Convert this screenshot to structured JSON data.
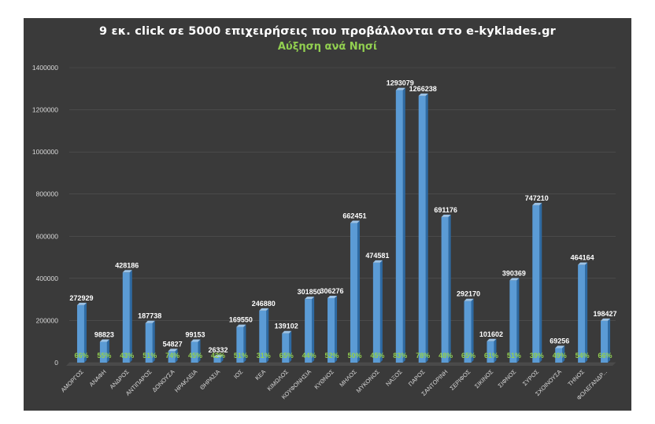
{
  "chart_data": {
    "type": "bar",
    "title": "9 εκ. click σε 5000 επιχειρήσεις που προβάλλονται στο e-kyklades.gr",
    "subtitle": "Αύξηση ανά Νησί",
    "xlabel": "",
    "ylabel": "",
    "ylim": [
      0,
      1400000
    ],
    "yticks": [
      "0",
      "200000",
      "400000",
      "600000",
      "800000",
      "1000000",
      "1200000",
      "1400000"
    ],
    "grid": true,
    "legend": "none",
    "categories": [
      "ΑΜΟΡΓΟΣ",
      "ΑΝΑΦΗ",
      "ΑΝΔΡΟΣ",
      "ΑΝΤΙΠΑΡΟΣ",
      "ΔΟΝΟΥΣΑ",
      "ΗΡΑΚΛΕΙΑ",
      "ΘΗΡΑΣΙΑ",
      "ΙΟΣ",
      "ΚΕΑ",
      "ΚΙΜΩΛΟΣ",
      "ΚΟΥΦΟΝΗΣΙΑ",
      "ΚΥΘΝΟΣ",
      "ΜΗΛΟΣ",
      "ΜΥΚΟΝΟΣ",
      "ΝΑΞΟΣ",
      "ΠΑΡΟΣ",
      "ΣΑΝΤΟΡΙΝΗ",
      "ΣΕΡΙΦΟΣ",
      "ΣΙΚΙΝΟΣ",
      "ΣΙΦΝΟΣ",
      "ΣΥΡΟΣ",
      "ΣΧΟΙΝΟΥΣΑ",
      "ΤΗΝΟΣ",
      "ΦΟΛΕΓΑΝΔΡ..."
    ],
    "values": [
      272929,
      98823,
      428186,
      187738,
      54827,
      99153,
      26332,
      169550,
      246880,
      139102,
      301850,
      306276,
      662451,
      474581,
      1293079,
      1266238,
      691176,
      292170,
      101602,
      390369,
      747210,
      69256,
      464164,
      198427
    ],
    "growth_labels": [
      "66%",
      "55%",
      "43%",
      "51%",
      "74%",
      "45%",
      "42%",
      "51%",
      "31%",
      "65%",
      "44%",
      "52%",
      "50%",
      "45%",
      "83%",
      "78%",
      "48%",
      "65%",
      "61%",
      "51%",
      "39%",
      "49%",
      "54%",
      "66%"
    ],
    "colors": {
      "background": "#3a3a3a",
      "bar": "#5b9bd5",
      "bar_top": "#9dc3e6",
      "bar_side": "#2e6aa3",
      "title": "#ffffff",
      "subtitle": "#92d050",
      "growth_label": "#92d050",
      "value_label": "#ffffff",
      "axis_text": "#d9d9d9",
      "grid": "#555555"
    }
  }
}
